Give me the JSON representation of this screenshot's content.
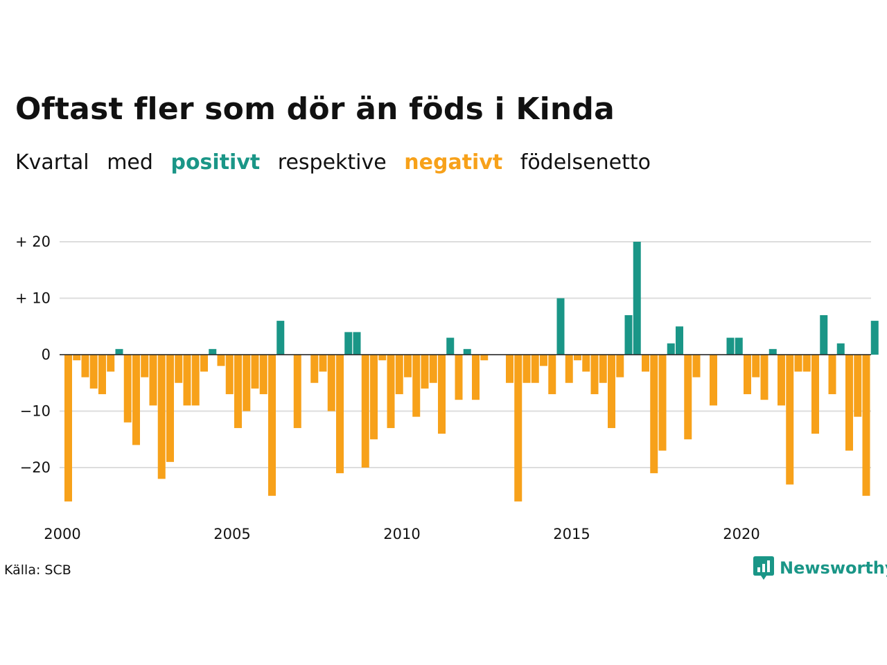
{
  "title": "Oftast fler som dör än föds i Kinda",
  "subtitle": {
    "part1": "Kvartal",
    "part2": "med",
    "positive": "positivt",
    "part3": "respektive",
    "negative": "negativt",
    "part4": "födelsenetto"
  },
  "colors": {
    "positive": "#1a9687",
    "negative": "#f7a11a",
    "grid": "#dddddd",
    "text": "#111111"
  },
  "source": "Källa: SCB",
  "brand": {
    "name": "Newsworthy",
    "icon": "newsworthy-logo-icon"
  },
  "chart_data": {
    "type": "bar",
    "title": "Oftast fler som dör än föds i Kinda",
    "xlabel": "",
    "ylabel": "",
    "ylim": [
      -28,
      21
    ],
    "y_ticks": [
      20,
      10,
      0,
      -10,
      -20
    ],
    "y_tick_labels": [
      "+ 20",
      "+ 10",
      "0",
      "−10",
      "−20"
    ],
    "x_ticks": [
      2000,
      2005,
      2010,
      2015,
      2020
    ],
    "x_tick_labels": [
      "2000",
      "2005",
      "2010",
      "2015",
      "2020"
    ],
    "grid": true,
    "start_year": 2000,
    "periods_per_year": 4,
    "values": [
      -26,
      -1,
      -4,
      -6,
      -7,
      -3,
      1,
      -12,
      -16,
      -4,
      -9,
      -22,
      -19,
      -5,
      -9,
      -9,
      -3,
      1,
      -2,
      -7,
      -13,
      -10,
      -6,
      -7,
      -25,
      6,
      0,
      -13,
      0,
      -5,
      -3,
      -10,
      -21,
      4,
      4,
      -20,
      -15,
      -1,
      -13,
      -7,
      -4,
      -11,
      -6,
      -5,
      -14,
      3,
      -8,
      1,
      -8,
      -1,
      0,
      0,
      -5,
      -26,
      -5,
      -5,
      -2,
      -7,
      10,
      -5,
      -1,
      -3,
      -7,
      -5,
      -13,
      -4,
      7,
      20,
      -3,
      -21,
      -17,
      2,
      5,
      -15,
      -4,
      0,
      -9,
      0,
      3,
      3,
      -7,
      -4,
      -8,
      1,
      -9,
      -23,
      -3,
      -3,
      -14,
      7,
      -7,
      2,
      -17,
      -11,
      -25,
      6
    ]
  }
}
